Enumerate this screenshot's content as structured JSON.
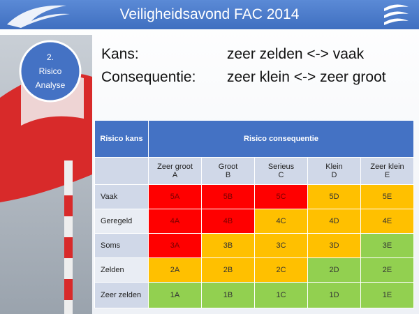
{
  "header": {
    "title": "Veiligheidsavond FAC 2014"
  },
  "badge": {
    "lines": [
      "2.",
      "Risico",
      "Analyse"
    ]
  },
  "legend": [
    {
      "term": "Kans:",
      "text": "zeer zelden <-> vaak"
    },
    {
      "term": "Consequentie:",
      "text": "zeer klein <-> zeer groot"
    }
  ],
  "table": {
    "header": [
      "Risico kans",
      "Risico consequentie"
    ],
    "columns": [
      [
        "Zeer groot",
        "A"
      ],
      [
        "Groot",
        "B"
      ],
      [
        "Serieus",
        "C"
      ],
      [
        "Klein",
        "D"
      ],
      [
        "Zeer klein",
        "E"
      ]
    ],
    "rows": [
      {
        "label": "Vaak",
        "cells": [
          "5A",
          "5B",
          "5C",
          "5D",
          "5E"
        ],
        "colors": [
          "#ff0000",
          "#ff0000",
          "#ff0000",
          "#ffc000",
          "#ffc000"
        ]
      },
      {
        "label": "Geregeld",
        "cells": [
          "4A",
          "4B",
          "4C",
          "4D",
          "4E"
        ],
        "colors": [
          "#ff0000",
          "#ff0000",
          "#ffc000",
          "#ffc000",
          "#ffc000"
        ]
      },
      {
        "label": "Soms",
        "cells": [
          "3A",
          "3B",
          "3C",
          "3D",
          "3E"
        ],
        "colors": [
          "#ff0000",
          "#ffc000",
          "#ffc000",
          "#ffc000",
          "#92d050"
        ]
      },
      {
        "label": "Zelden",
        "cells": [
          "2A",
          "2B",
          "2C",
          "2D",
          "2E"
        ],
        "colors": [
          "#ffc000",
          "#ffc000",
          "#ffc000",
          "#92d050",
          "#92d050"
        ]
      },
      {
        "label": "Zeer zelden",
        "cells": [
          "1A",
          "1B",
          "1C",
          "1D",
          "1E"
        ],
        "colors": [
          "#92d050",
          "#92d050",
          "#92d050",
          "#92d050",
          "#92d050"
        ]
      }
    ]
  }
}
